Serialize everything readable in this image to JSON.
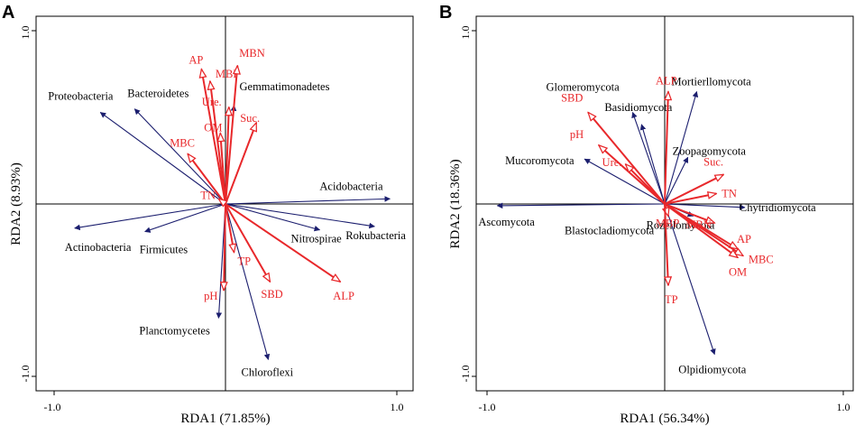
{
  "panels": [
    {
      "letter": "A",
      "xlabel": "RDA1 (71.85%)",
      "ylabel": "RDA2 (8.93%)",
      "xticks": [
        "-1.0",
        "1.0"
      ],
      "yticks": [
        "1.0",
        "-1.0"
      ]
    },
    {
      "letter": "B",
      "xlabel": "RDA1 (56.34%)",
      "ylabel": "RDA2 (18.36%)",
      "xticks": [
        "-1.0",
        "1.0"
      ],
      "yticks": [
        "1.0",
        "-1.0"
      ]
    }
  ],
  "chart_data": [
    {
      "type": "scatter",
      "subtype": "rda-biplot",
      "panel": "A",
      "title": "",
      "xlabel": "RDA1 (71.85%)",
      "ylabel": "RDA2 (8.93%)",
      "xlim": [
        -1.05,
        1.05
      ],
      "ylim": [
        -1.05,
        1.05
      ],
      "series": [
        {
          "name": "phyla",
          "color": "#1b1e6e",
          "arrow": "filled",
          "points": [
            {
              "label": "Proteobacteria",
              "x": -0.73,
              "y": 0.53
            },
            {
              "label": "Bacteroidetes",
              "x": -0.53,
              "y": 0.55
            },
            {
              "label": "Gemmatimonadetes",
              "x": 0.05,
              "y": 0.57
            },
            {
              "label": "Acidobacteria",
              "x": 0.96,
              "y": 0.03
            },
            {
              "label": "Rokubacteria",
              "x": 0.87,
              "y": -0.13
            },
            {
              "label": "Nitrospirae",
              "x": 0.55,
              "y": -0.15
            },
            {
              "label": "Actinobacteria",
              "x": -0.88,
              "y": -0.14
            },
            {
              "label": "Firmicutes",
              "x": -0.47,
              "y": -0.16
            },
            {
              "label": "Planctomycetes",
              "x": -0.04,
              "y": -0.66
            },
            {
              "label": "Chloroflexi",
              "x": 0.25,
              "y": -0.9
            }
          ]
        },
        {
          "name": "soil properties",
          "color": "#e8282b",
          "arrow": "open",
          "points": [
            {
              "label": "AP",
              "x": -0.14,
              "y": 0.78
            },
            {
              "label": "MBP",
              "x": -0.09,
              "y": 0.71
            },
            {
              "label": "MBN",
              "x": 0.07,
              "y": 0.8
            },
            {
              "label": "Ure.",
              "x": 0.02,
              "y": 0.56
            },
            {
              "label": "OM",
              "x": -0.03,
              "y": 0.41
            },
            {
              "label": "Suc.",
              "x": 0.18,
              "y": 0.47
            },
            {
              "label": "MBC",
              "x": -0.22,
              "y": 0.29
            },
            {
              "label": "TN",
              "x": -0.04,
              "y": 0.03
            },
            {
              "label": "TP",
              "x": 0.05,
              "y": -0.28
            },
            {
              "label": "SBD",
              "x": 0.26,
              "y": -0.45
            },
            {
              "label": "ALP",
              "x": 0.67,
              "y": -0.45
            },
            {
              "label": "pH",
              "x": -0.01,
              "y": -0.5
            }
          ]
        }
      ]
    },
    {
      "type": "scatter",
      "subtype": "rda-biplot",
      "panel": "B",
      "title": "",
      "xlabel": "RDA1 (56.34%)",
      "ylabel": "RDA2 (18.36%)",
      "xlim": [
        -1.05,
        1.05
      ],
      "ylim": [
        -1.05,
        1.05
      ],
      "series": [
        {
          "name": "phyla",
          "color": "#1b1e6e",
          "arrow": "filled",
          "points": [
            {
              "label": "Mortierllomycota",
              "x": 0.18,
              "y": 0.65
            },
            {
              "label": "Glomeromycota",
              "x": -0.18,
              "y": 0.53
            },
            {
              "label": "Basidiomycota",
              "x": -0.13,
              "y": 0.46
            },
            {
              "label": "Zoopagomycota",
              "x": 0.13,
              "y": 0.27
            },
            {
              "label": "Mucoromycota",
              "x": -0.45,
              "y": 0.26
            },
            {
              "label": "Ascomycota",
              "x": -0.94,
              "y": -0.01
            },
            {
              "label": "Chytridiomycota",
              "x": 0.45,
              "y": -0.02
            },
            {
              "label": "Rozellomycota",
              "x": 0.16,
              "y": -0.07
            },
            {
              "label": "Blastocladiomycota",
              "x": 0.02,
              "y": -0.06
            },
            {
              "label": "Olpidiomycota",
              "x": 0.28,
              "y": -0.87
            }
          ]
        },
        {
          "name": "soil properties",
          "color": "#e8282b",
          "arrow": "open",
          "points": [
            {
              "label": "ALP",
              "x": 0.02,
              "y": 0.65
            },
            {
              "label": "SBD",
              "x": -0.43,
              "y": 0.53
            },
            {
              "label": "pH",
              "x": -0.37,
              "y": 0.34
            },
            {
              "label": "Ure.",
              "x": -0.22,
              "y": 0.23
            },
            {
              "label": "Suc.",
              "x": 0.33,
              "y": 0.17
            },
            {
              "label": "TN",
              "x": 0.29,
              "y": 0.06
            },
            {
              "label": "MBN",
              "x": 0.28,
              "y": -0.11
            },
            {
              "label": "AP",
              "x": 0.41,
              "y": -0.26
            },
            {
              "label": "MBC",
              "x": 0.44,
              "y": -0.3
            },
            {
              "label": "OM",
              "x": 0.41,
              "y": -0.31
            },
            {
              "label": "MBP",
              "x": 0.02,
              "y": -0.07
            },
            {
              "label": "TP",
              "x": 0.02,
              "y": -0.47
            }
          ]
        }
      ]
    }
  ]
}
